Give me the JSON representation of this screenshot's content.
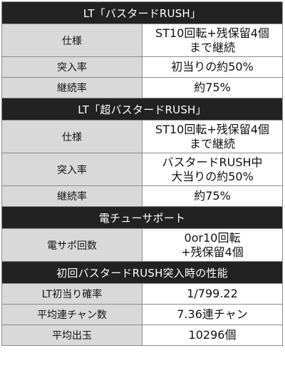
{
  "sections": [
    {
      "title": "LT「バスタードRUSH」",
      "rows": [
        {
          "label": "仕様",
          "value": [
            "ST10回転+残保留4個",
            "まで継続"
          ]
        },
        {
          "label": "突入率",
          "value": [
            "初当りの約50%"
          ]
        },
        {
          "label": "継続率",
          "value": [
            "約75%"
          ]
        }
      ]
    },
    {
      "title": "LT「超バスタードRUSH」",
      "rows": [
        {
          "label": "仕様",
          "value": [
            "ST10回転+残保留4個",
            "まで継続"
          ]
        },
        {
          "label": "突入率",
          "value": [
            "バスタードRUSH中",
            "大当りの約50%"
          ]
        },
        {
          "label": "継続率",
          "value": [
            "約75%"
          ]
        }
      ]
    },
    {
      "title": "電チューサポート",
      "rows": [
        {
          "label": "電サポ回数",
          "value": [
            "0or10回転",
            "+残保留4個"
          ]
        }
      ]
    },
    {
      "title": "初回バスタードRUSH突入時の性能",
      "rows": [
        {
          "label": "LT初当り確率",
          "value": [
            "1/799.22"
          ]
        },
        {
          "label": "平均連チャン数",
          "value": [
            "7.36連チャン"
          ]
        },
        {
          "label": "平均出玉",
          "value": [
            "10296個"
          ]
        }
      ]
    }
  ]
}
